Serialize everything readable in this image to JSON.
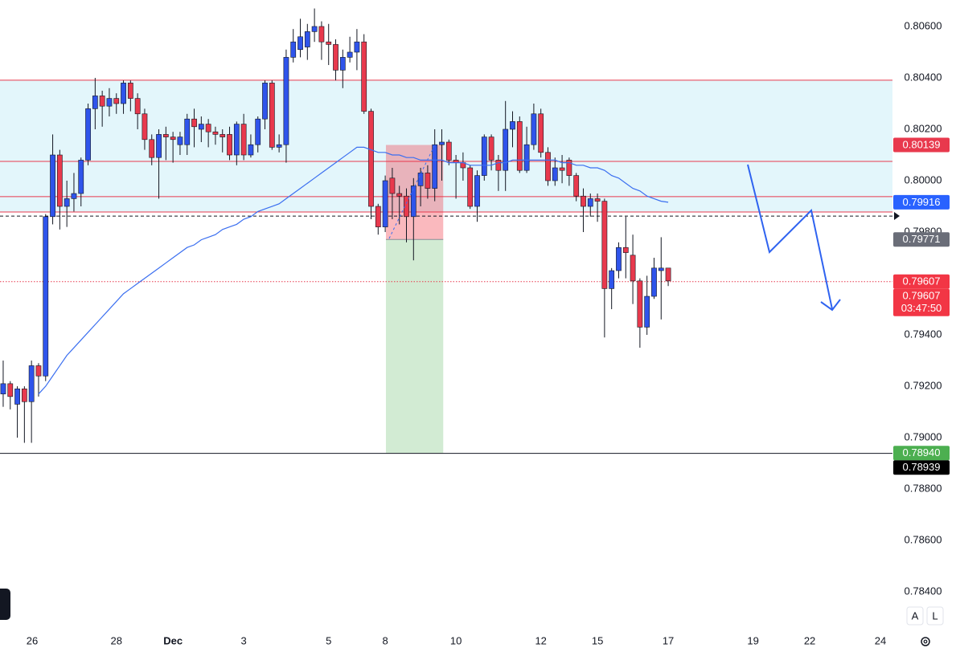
{
  "chart_data": {
    "type": "candlestick",
    "open": [
      0.7917,
      0.7921,
      0.7913,
      0.7919,
      0.7914,
      0.7928,
      0.7924,
      0.7986,
      0.801,
      0.799,
      0.7993,
      0.7995,
      0.8008,
      0.8028,
      0.8033,
      0.8029,
      0.8032,
      0.803,
      0.8038,
      0.8032,
      0.8026,
      0.8016,
      0.8009,
      0.8018,
      0.8017,
      0.8014,
      0.8014,
      0.8024,
      0.802,
      0.8022,
      0.8019,
      0.8018,
      0.8018,
      0.801,
      0.8022,
      0.801,
      0.8014,
      0.8024,
      0.8038,
      0.8013,
      0.8014,
      0.8048,
      0.8051,
      0.8052,
      0.8058,
      0.806,
      0.8054,
      0.8053,
      0.8043,
      0.8048,
      0.805,
      0.8054,
      0.8027,
      0.799,
      0.7982,
      0.8001,
      0.7995,
      0.7994,
      0.7986,
      0.7998,
      0.8003,
      0.7997,
      0.8014,
      0.8015,
      0.8008,
      0.8007,
      0.8005,
      0.799,
      0.8002,
      0.8017,
      0.8008,
      0.8004,
      0.802,
      0.8023,
      0.8004,
      0.8014,
      0.8026,
      0.8011,
      0.8,
      0.8005,
      0.8008,
      0.8002,
      0.7994,
      0.799,
      0.7993,
      0.7992,
      0.7958,
      0.7965,
      0.7974,
      0.7971,
      0.7961,
      0.7943,
      0.7955,
      0.7965,
      0.7966
    ],
    "high": [
      0.793,
      0.7922,
      0.792,
      0.792,
      0.793,
      0.7929,
      0.7987,
      0.8018,
      0.8012,
      0.8,
      0.8003,
      0.8009,
      0.803,
      0.804,
      0.8035,
      0.8036,
      0.8034,
      0.8039,
      0.8039,
      0.8034,
      0.8028,
      0.8018,
      0.802,
      0.8021,
      0.8019,
      0.8019,
      0.8026,
      0.8028,
      0.8025,
      0.8024,
      0.8021,
      0.802,
      0.8021,
      0.8023,
      0.8026,
      0.8018,
      0.8025,
      0.8039,
      0.8039,
      0.8018,
      0.8051,
      0.8059,
      0.8063,
      0.8061,
      0.8067,
      0.8062,
      0.8061,
      0.8055,
      0.8051,
      0.8056,
      0.8059,
      0.8057,
      0.8028,
      0.7991,
      0.8002,
      0.8005,
      0.7998,
      0.7997,
      0.8001,
      0.8005,
      0.8006,
      0.802,
      0.802,
      0.8016,
      0.801,
      0.8011,
      0.8006,
      0.8004,
      0.8018,
      0.8018,
      0.801,
      0.8031,
      0.8027,
      0.8025,
      0.8021,
      0.803,
      0.8028,
      0.8013,
      0.8009,
      0.801,
      0.8009,
      0.8003,
      0.7997,
      0.7995,
      0.7995,
      0.7993,
      0.7966,
      0.7976,
      0.7986,
      0.7979,
      0.7962,
      0.7963,
      0.797,
      0.7978,
      0.7966
    ],
    "low": [
      0.7912,
      0.7911,
      0.79,
      0.7898,
      0.7898,
      0.7916,
      0.7922,
      0.7983,
      0.7981,
      0.7982,
      0.7988,
      0.799,
      0.8006,
      0.802,
      0.8021,
      0.8025,
      0.8026,
      0.8026,
      0.8027,
      0.802,
      0.8012,
      0.8006,
      0.7993,
      0.8008,
      0.8007,
      0.801,
      0.801,
      0.8013,
      0.8015,
      0.8013,
      0.8014,
      0.8011,
      0.8008,
      0.8006,
      0.8008,
      0.8009,
      0.8011,
      0.802,
      0.8012,
      0.8011,
      0.8007,
      0.8046,
      0.8048,
      0.8047,
      0.8054,
      0.8047,
      0.8045,
      0.8039,
      0.8036,
      0.8046,
      0.8043,
      0.8026,
      0.7985,
      0.7979,
      0.798,
      0.7985,
      0.7983,
      0.7976,
      0.7969,
      0.799,
      0.7993,
      0.7992,
      0.8,
      0.8006,
      0.7993,
      0.8,
      0.7989,
      0.7984,
      0.8,
      0.8004,
      0.7996,
      0.7996,
      0.8013,
      0.8003,
      0.8003,
      0.8012,
      0.8009,
      0.7998,
      0.7998,
      0.7999,
      0.7998,
      0.7992,
      0.798,
      0.7986,
      0.7984,
      0.7939,
      0.795,
      0.7962,
      0.7962,
      0.7952,
      0.7935,
      0.794,
      0.7954,
      0.7946,
      0.7959
    ],
    "close": [
      0.7921,
      0.7916,
      0.7919,
      0.7914,
      0.7928,
      0.7924,
      0.7986,
      0.801,
      0.799,
      0.7993,
      0.7995,
      0.8008,
      0.8028,
      0.8033,
      0.8029,
      0.8032,
      0.803,
      0.8038,
      0.8032,
      0.8026,
      0.8016,
      0.8009,
      0.8018,
      0.8017,
      0.8016,
      0.8017,
      0.8024,
      0.8021,
      0.8022,
      0.8019,
      0.8018,
      0.8017,
      0.801,
      0.8022,
      0.801,
      0.8014,
      0.8024,
      0.8038,
      0.8013,
      0.8014,
      0.8048,
      0.8054,
      0.8056,
      0.8058,
      0.806,
      0.8054,
      0.8053,
      0.8043,
      0.8048,
      0.805,
      0.8054,
      0.8027,
      0.799,
      0.7982,
      0.8,
      0.7995,
      0.7994,
      0.7986,
      0.7998,
      0.8003,
      0.7997,
      0.8014,
      0.8015,
      0.8008,
      0.8007,
      0.8005,
      0.799,
      0.8002,
      0.8017,
      0.8008,
      0.8004,
      0.802,
      0.8023,
      0.8004,
      0.8014,
      0.8026,
      0.8011,
      0.8,
      0.8005,
      0.8004,
      0.8002,
      0.7994,
      0.799,
      0.7993,
      0.7992,
      0.7958,
      0.7965,
      0.7974,
      0.7972,
      0.7961,
      0.7943,
      0.7955,
      0.7966,
      0.7966,
      0.7961
    ],
    "up_color": "#2f54eb",
    "down_color": "#e8394d",
    "ma": {
      "color": "#3b6ff0",
      "values": [
        null,
        null,
        null,
        null,
        null,
        0.7917,
        0.792,
        0.7924,
        0.7928,
        0.7932,
        0.7935,
        0.7938,
        0.7941,
        0.7944,
        0.7947,
        0.795,
        0.7953,
        0.7956,
        0.7958,
        0.796,
        0.7962,
        0.7964,
        0.7966,
        0.7968,
        0.797,
        0.7972,
        0.7974,
        0.7975,
        0.7977,
        0.7978,
        0.7979,
        0.7981,
        0.7982,
        0.7983,
        0.7985,
        0.7986,
        0.7988,
        0.7989,
        0.799,
        0.7991,
        0.7993,
        0.7995,
        0.7997,
        0.7999,
        0.8001,
        0.8003,
        0.8005,
        0.8007,
        0.8009,
        0.8011,
        0.8013,
        0.8013,
        0.8012,
        0.8011,
        0.8011,
        0.801,
        0.801,
        0.8009,
        0.8009,
        0.8008,
        0.8008,
        0.8008,
        0.8008,
        0.8007,
        0.8007,
        0.8007,
        0.8006,
        0.8006,
        0.8006,
        0.8006,
        0.8007,
        0.8007,
        0.8008,
        0.8008,
        0.8008,
        0.8008,
        0.8008,
        0.8008,
        0.8008,
        0.8007,
        0.8007,
        0.8006,
        0.8006,
        0.8005,
        0.8005,
        0.8004,
        0.8002,
        0.8001,
        0.7999,
        0.7997,
        0.7996,
        0.7994,
        0.7993,
        0.7992,
        0.79916
      ]
    },
    "xlim": [
      -0.45,
      125.7
    ],
    "ylim": [
      0.78266,
      0.80703
    ],
    "xticks": [
      {
        "value": 4.1,
        "label": "26"
      },
      {
        "value": 16,
        "label": "28"
      },
      {
        "value": 24,
        "label": "Dec"
      },
      {
        "value": 34,
        "label": "3"
      },
      {
        "value": 46,
        "label": "5"
      },
      {
        "value": 54,
        "label": "8"
      },
      {
        "value": 64,
        "label": "10"
      },
      {
        "value": 76,
        "label": "12"
      },
      {
        "value": 84,
        "label": "15"
      },
      {
        "value": 94,
        "label": "17"
      },
      {
        "value": 106,
        "label": "19"
      },
      {
        "value": 114,
        "label": "22"
      },
      {
        "value": 124,
        "label": "24"
      }
    ],
    "yticks": [
      {
        "value": 0.806,
        "label": "0.80600"
      },
      {
        "value": 0.804,
        "label": "0.80400"
      },
      {
        "value": 0.802,
        "label": "0.80200"
      },
      {
        "value": 0.8,
        "label": "0.80000"
      },
      {
        "value": 0.798,
        "label": "0.79800"
      },
      {
        "value": 0.796,
        "label": "0.79600"
      },
      {
        "value": 0.794,
        "label": "0.79400"
      },
      {
        "value": 0.792,
        "label": "0.79200"
      },
      {
        "value": 0.79,
        "label": "0.79000"
      },
      {
        "value": 0.788,
        "label": "0.78800"
      },
      {
        "value": 0.786,
        "label": "0.78600"
      },
      {
        "value": 0.784,
        "label": "0.78400"
      }
    ],
    "grid": false,
    "zone": {
      "from": 0.79878,
      "to": 0.80391,
      "color": "#e3f6fb"
    },
    "levels": [
      {
        "value": 0.80391,
        "color": "#e8394d",
        "style": "solid"
      },
      {
        "value": 0.80075,
        "color": "#e8394d",
        "style": "solid"
      },
      {
        "value": 0.79938,
        "color": "#e8394d",
        "style": "solid"
      },
      {
        "value": 0.79878,
        "color": "#e8394d",
        "style": "solid"
      },
      {
        "value": 0.79862,
        "color": "#131722",
        "style": "dashed"
      },
      {
        "value": 0.79607,
        "color": "#e8394d",
        "style": "dotted"
      },
      {
        "value": 0.78939,
        "color": "#131722",
        "style": "solid"
      }
    ],
    "position": {
      "x_range": [
        54.1,
        62.2
      ],
      "entry": 0.79771,
      "stop": 0.80139,
      "target": 0.7894,
      "stop_color": "rgba(242,54,69,0.35)",
      "target_color": "rgba(76,175,80,0.25)"
    },
    "price_tags": [
      {
        "value": 0.80139,
        "color": "#e8394d"
      },
      {
        "value": 0.79916,
        "color": "#2962ff"
      },
      {
        "value": 0.79771,
        "color": "#6a6d78"
      },
      {
        "value": 0.79607,
        "color": "#f23645"
      },
      {
        "value": 0.79607,
        "color": "#f23645",
        "countdown": "03:47:50"
      },
      {
        "value": 0.7894,
        "label": "0.78940",
        "color": "#4caf50"
      },
      {
        "value": 0.78939,
        "color": "#000000"
      }
    ],
    "buttons": [
      "A",
      "L"
    ]
  }
}
